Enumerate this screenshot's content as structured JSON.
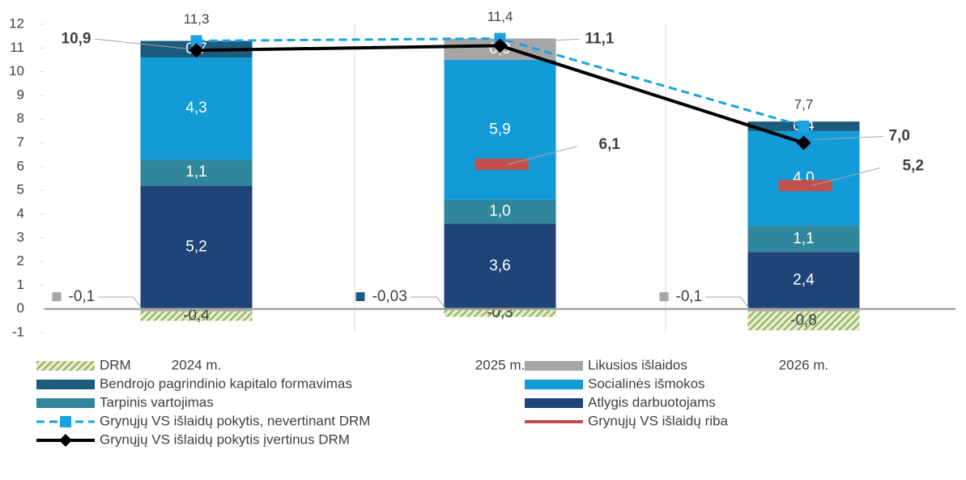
{
  "chart_data": {
    "type": "bar",
    "categories": [
      "2024 m.",
      "2025 m.",
      "2026 m."
    ],
    "ylim": [
      -1,
      12
    ],
    "yticks": [
      -1,
      0,
      1,
      2,
      3,
      4,
      5,
      6,
      7,
      8,
      9,
      10,
      11,
      12
    ],
    "series": [
      {
        "name": "DRM",
        "type": "bar",
        "color": "#92b050",
        "hatch": true,
        "values": [
          -0.4,
          -0.3,
          -0.8
        ],
        "value_labels": [
          "-0,4",
          "-0,3",
          "-0,8"
        ]
      },
      {
        "name": "Likusios išlaidos",
        "type": "bar",
        "color": "#a6a6a6",
        "values": [
          -0.1,
          0.9,
          -0.1
        ],
        "value_labels": [
          "-0,1",
          "0,9",
          "-0,1"
        ]
      },
      {
        "name": "Bendrojo pagrindinio kapitalo formavimas",
        "type": "bar",
        "color": "#1b5b7d",
        "values": [
          0.7,
          -0.03,
          0.4
        ],
        "value_labels": [
          "0,7",
          "-0,03",
          "0,4"
        ]
      },
      {
        "name": "Socialinės išmokos",
        "type": "bar",
        "color": "#129bd6",
        "values": [
          4.3,
          5.9,
          4.0
        ],
        "value_labels": [
          "4,3",
          "5,9",
          "4,0"
        ]
      },
      {
        "name": "Tarpinis vartojimas",
        "type": "bar",
        "color": "#31869b",
        "values": [
          1.1,
          1.0,
          1.1
        ],
        "value_labels": [
          "1,1",
          "1,0",
          "1,1"
        ]
      },
      {
        "name": "Atlygis darbuotojams",
        "type": "bar",
        "color": "#1f4477",
        "values": [
          5.2,
          3.6,
          2.4
        ],
        "value_labels": [
          "5,2",
          "3,6",
          "2,4"
        ]
      },
      {
        "name": "Grynųjų VS išlaidų pokytis, nevertinant DRM",
        "type": "line",
        "dash": true,
        "marker": "square",
        "color": "#1aa3e0",
        "values": [
          11.3,
          11.4,
          7.7
        ],
        "value_labels": [
          "11,3",
          "11,4",
          "7,7"
        ]
      },
      {
        "name": "Grynųjų VS išlaidų riba",
        "type": "marker",
        "color": "#c0504d",
        "values": [
          null,
          6.1,
          5.2
        ],
        "value_labels": [
          null,
          "6,1",
          "5,2"
        ]
      },
      {
        "name": "Grynųjų VS išlaidų pokytis įvertinus DRM",
        "type": "line",
        "dash": false,
        "marker": "diamond",
        "color": "#000000",
        "values": [
          10.9,
          11.1,
          7.0
        ],
        "value_labels": [
          "10,9",
          "11,1",
          "7,0"
        ]
      }
    ]
  }
}
